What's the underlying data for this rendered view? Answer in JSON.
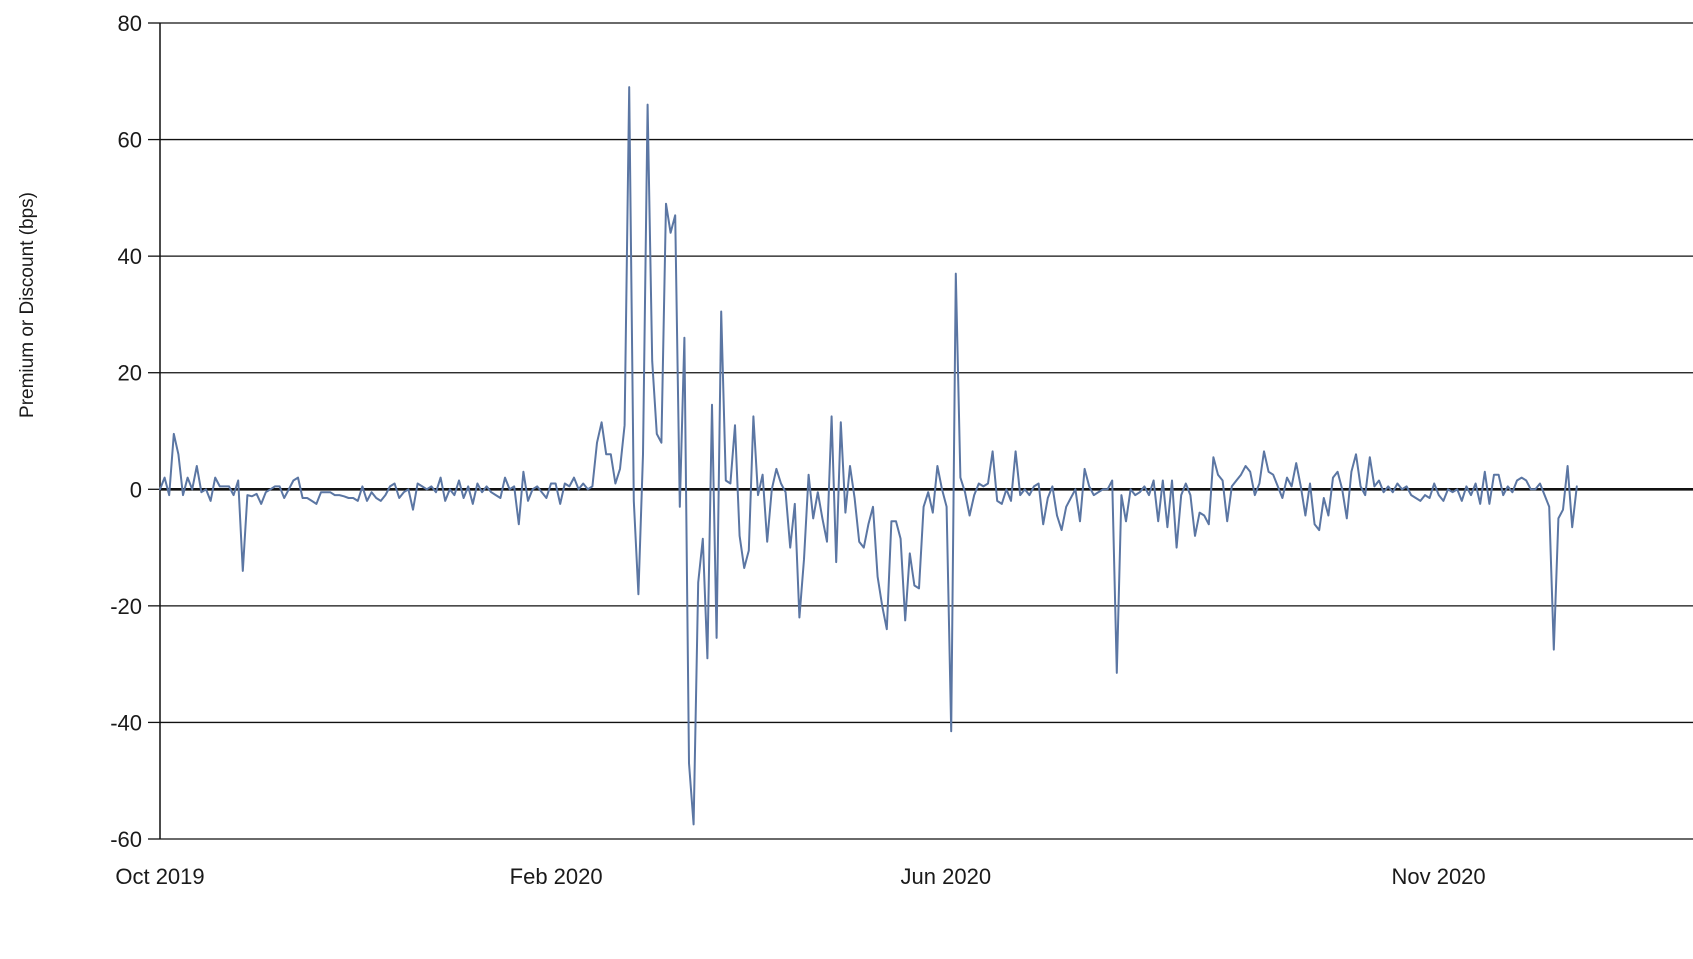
{
  "chart_data": {
    "type": "line",
    "title": "",
    "xlabel": "",
    "ylabel": "Premium or Discount (bps)",
    "ylim": [
      -60,
      80
    ],
    "yticks": [
      -60,
      -40,
      -20,
      0,
      20,
      40,
      60,
      80
    ],
    "ytick_labels": [
      "-60",
      "-40",
      "-20",
      "0",
      "20",
      "40",
      "60",
      "80"
    ],
    "xlim": [
      "2019-10-01",
      "2021-01-19"
    ],
    "xticks": [
      "2019-10-01",
      "2020-02-01",
      "2020-06-01",
      "2020-11-01"
    ],
    "xtick_labels": [
      "Oct 2019",
      "Feb 2020",
      "Jun 2020",
      "Nov 2020"
    ],
    "grid": true,
    "zero_line": true,
    "line_color": "#5b76a3",
    "series": [
      {
        "values": [
          0,
          2,
          -1,
          9.5,
          6,
          -1,
          2,
          0,
          4,
          -0.5,
          0,
          -2,
          2,
          0.5,
          0.5,
          0.5,
          -1,
          1.5,
          -14,
          -1,
          -1.2,
          -0.8,
          -2.5,
          -0.5,
          0,
          0.5,
          0.5,
          -1.5,
          0,
          1.5,
          2,
          -1.5,
          -1.5,
          -2,
          -2.5,
          -0.5,
          -0.5,
          -0.5,
          -1,
          -1,
          -1.2,
          -1.5,
          -1.5,
          -2,
          0.5,
          -2,
          -0.5,
          -1.5,
          -2,
          -1,
          0.5,
          1,
          -1.5,
          -0.5,
          0,
          -3.5,
          1,
          0.5,
          0,
          0.5,
          -0.5,
          2,
          -2,
          0,
          -1,
          1.5,
          -1.5,
          0.5,
          -2.5,
          1,
          -0.5,
          0.5,
          -0.5,
          -1,
          -1.5,
          2,
          0,
          0.5,
          -6,
          3,
          -2,
          0,
          0.5,
          -0.5,
          -1.5,
          1,
          1,
          -2.5,
          1,
          0.5,
          2,
          0,
          1,
          0,
          0.5,
          8,
          11.5,
          6,
          6,
          1,
          3.5,
          11,
          69,
          -2,
          -18,
          6,
          66,
          22,
          9.5,
          8,
          49,
          44,
          47,
          -3,
          26,
          -47,
          -57.5,
          -16,
          -8.5,
          -29,
          14.5,
          -25.5,
          30.5,
          1.5,
          1,
          11,
          -8,
          -13.5,
          -10.5,
          12.5,
          -1,
          2.5,
          -9,
          0,
          3.5,
          1,
          -0.5,
          -10,
          -2.5,
          -22,
          -12,
          2.5,
          -5,
          -0.5,
          -5,
          -9,
          12.5,
          -12.5,
          11.5,
          -4,
          4,
          -1.5,
          -9,
          -10,
          -6,
          -3,
          -15,
          -20,
          -24,
          -5.5,
          -5.5,
          -8.5,
          -22.5,
          -11,
          -16.5,
          -17,
          -3,
          -0.5,
          -4,
          4,
          0,
          -3,
          -41.5,
          37,
          2,
          -0.5,
          -4.5,
          -1,
          1,
          0.5,
          1,
          6.5,
          -2,
          -2.5,
          0,
          -2,
          6.5,
          -1,
          0,
          -1,
          0.5,
          1,
          -6,
          -1.5,
          0.5,
          -4.5,
          -7,
          -3,
          -1.5,
          0,
          -5.5,
          3.5,
          0.5,
          -1,
          -0.5,
          0,
          0,
          1.5,
          -31.5,
          -1,
          -5.5,
          0,
          -1,
          -0.5,
          0.5,
          -1,
          1.5,
          -5.5,
          1.5,
          -6.5,
          1.5,
          -10,
          -1,
          1,
          -1,
          -8,
          -4,
          -4.5,
          -6,
          5.5,
          2.5,
          1.5,
          -5.5,
          0.5,
          1.5,
          2.5,
          4,
          3,
          -1,
          1,
          6.5,
          3,
          2.5,
          0.5,
          -1.5,
          2,
          0.5,
          4.5,
          0.5,
          -4.5,
          1,
          -6,
          -7,
          -1.5,
          -4.5,
          2,
          3,
          0,
          -5,
          3,
          6,
          0.5,
          -1,
          5.5,
          0.5,
          1.5,
          -0.5,
          0.5,
          -0.5,
          1,
          0,
          0.5,
          -1,
          -1.5,
          -2,
          -1,
          -1.5,
          1,
          -1,
          -2,
          0,
          -0.5,
          0,
          -2,
          0.5,
          -1,
          1,
          -2.5,
          3,
          -2.5,
          2.5,
          2.5,
          -1,
          0.5,
          -0.5,
          1.5,
          2,
          1.5,
          0,
          0,
          1,
          -1,
          -3,
          -27.5,
          -5,
          -3.5,
          4,
          -6.5,
          0.5
        ]
      }
    ]
  }
}
